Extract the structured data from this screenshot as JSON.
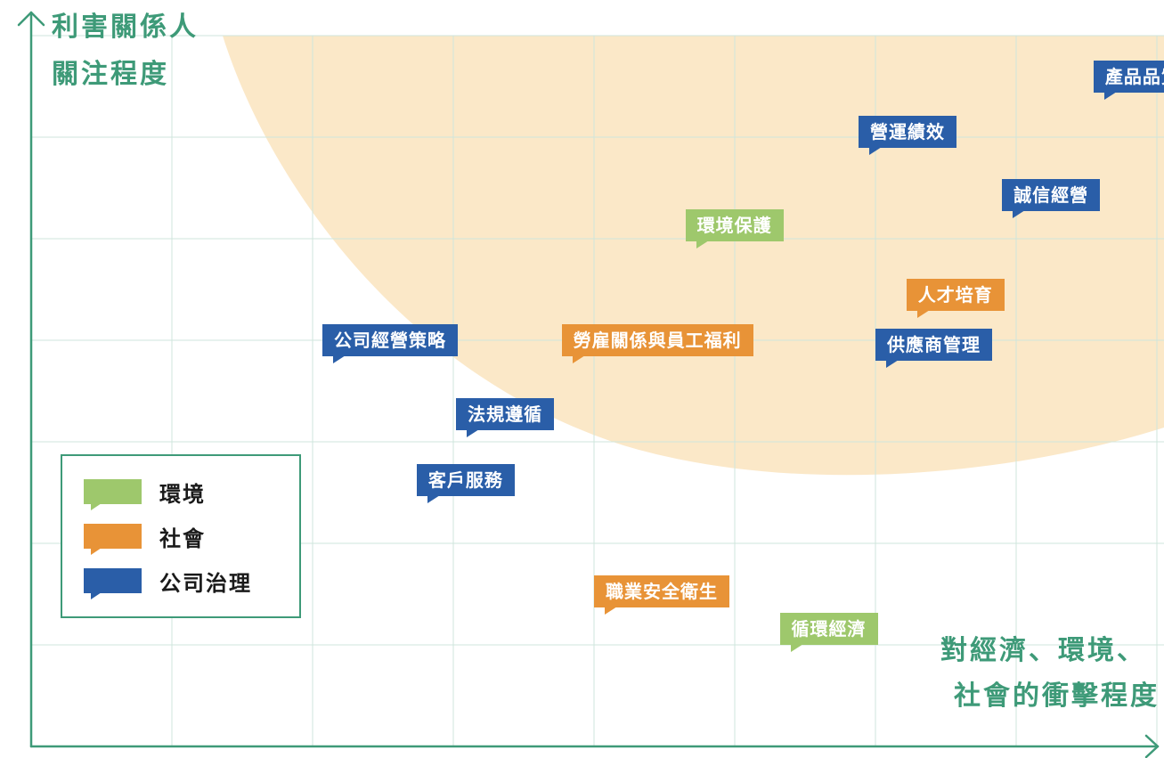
{
  "chart_data": {
    "type": "scatter",
    "title": "",
    "ylabel_lines": [
      "利害關係人",
      "關注程度"
    ],
    "xlabel_lines": [
      "對經濟、環境、",
      "社會的衝擊程度"
    ],
    "xlim": [
      0,
      8.15
    ],
    "ylim": [
      0,
      7
    ],
    "grid": true,
    "legend_position": "bottom-left",
    "categories": [
      {
        "key": "env",
        "label": "環境",
        "color": "#9ec86c"
      },
      {
        "key": "soc",
        "label": "社會",
        "color": "#e89337"
      },
      {
        "key": "gov",
        "label": "公司治理",
        "color": "#2a5ea8"
      }
    ],
    "points": [
      {
        "label": "產品品質",
        "category": "gov",
        "x": 7.55,
        "y": 6.6
      },
      {
        "label": "營運績效",
        "category": "gov",
        "x": 5.88,
        "y": 6.05
      },
      {
        "label": "誠信經營",
        "category": "gov",
        "x": 6.9,
        "y": 5.43
      },
      {
        "label": "環境保護",
        "category": "env",
        "x": 4.65,
        "y": 5.13
      },
      {
        "label": "人才培育",
        "category": "soc",
        "x": 6.22,
        "y": 4.45
      },
      {
        "label": "公司經營策略",
        "category": "gov",
        "x": 2.07,
        "y": 4.0
      },
      {
        "label": "勞雇關係與員工福利",
        "category": "soc",
        "x": 3.77,
        "y": 4.0
      },
      {
        "label": "供應商管理",
        "category": "gov",
        "x": 6.0,
        "y": 3.96
      },
      {
        "label": "法規遵循",
        "category": "gov",
        "x": 3.02,
        "y": 3.27
      },
      {
        "label": "客戶服務",
        "category": "gov",
        "x": 2.74,
        "y": 2.62
      },
      {
        "label": "職業安全衛生",
        "category": "soc",
        "x": 4.0,
        "y": 1.53
      },
      {
        "label": "循環經濟",
        "category": "env",
        "x": 5.32,
        "y": 1.16
      }
    ],
    "highlight_region_color": "#fbe8c8"
  }
}
